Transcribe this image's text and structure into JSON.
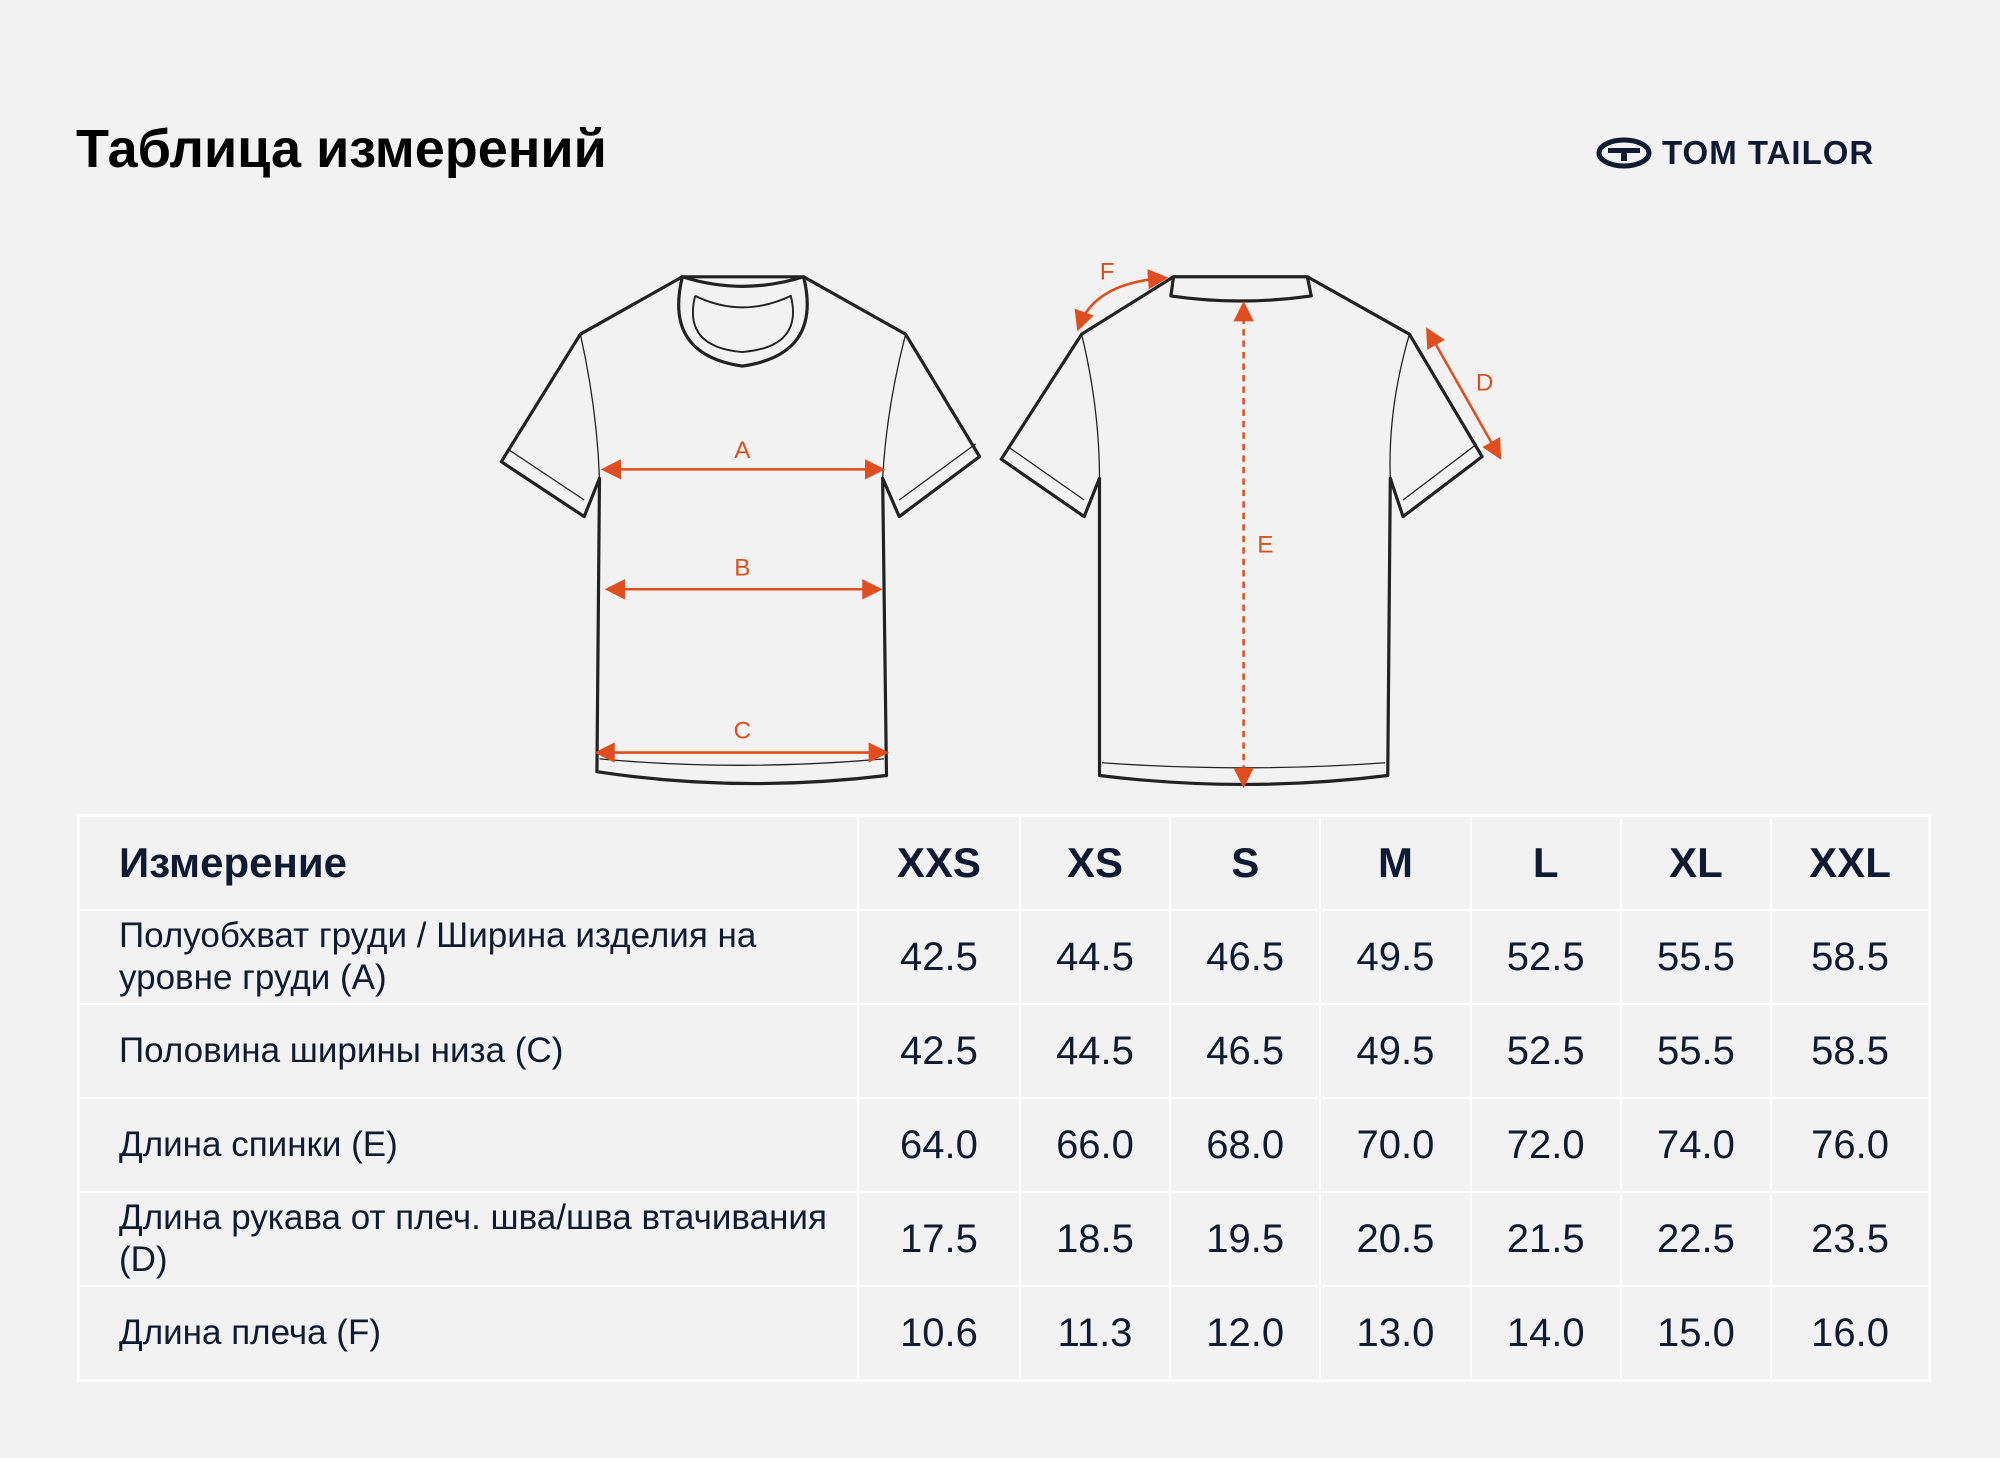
{
  "header": {
    "title": "Таблица измерений",
    "brand": "TOM TAILOR"
  },
  "diagram": {
    "labels": {
      "a": "A",
      "b": "B",
      "c": "C",
      "d": "D",
      "e": "E",
      "f": "F"
    }
  },
  "table": {
    "columns": [
      "Измерение",
      "XXS",
      "XS",
      "S",
      "M",
      "L",
      "XL",
      "XXL"
    ],
    "rows": [
      [
        "Полуобхват груди / Ширина изделия на уровне груди (A)",
        "42.5",
        "44.5",
        "46.5",
        "49.5",
        "52.5",
        "55.5",
        "58.5"
      ],
      [
        "Половина ширины низа (C)",
        "42.5",
        "44.5",
        "46.5",
        "49.5",
        "52.5",
        "55.5",
        "58.5"
      ],
      [
        "Длина спинки (E)",
        "64.0",
        "66.0",
        "68.0",
        "70.0",
        "72.0",
        "74.0",
        "76.0"
      ],
      [
        "Длина рукава от плеч. шва/шва втачивания (D)",
        "17.5",
        "18.5",
        "19.5",
        "20.5",
        "21.5",
        "22.5",
        "23.5"
      ],
      [
        "Длина плеча (F)",
        "10.6",
        "11.3",
        "12.0",
        "13.0",
        "14.0",
        "15.0",
        "16.0"
      ]
    ]
  }
}
